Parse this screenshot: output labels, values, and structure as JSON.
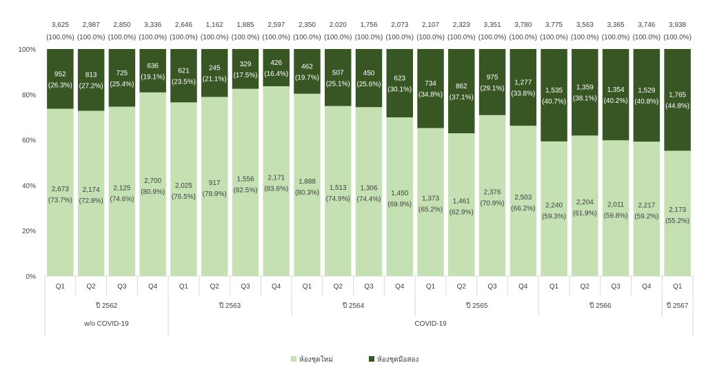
{
  "chart_data": {
    "type": "bar",
    "stacked": true,
    "percent_stacked": true,
    "title": "",
    "ylabel": "",
    "xlabel": "",
    "ylim": [
      0,
      100
    ],
    "y_ticks": [
      "0%",
      "20%",
      "40%",
      "60%",
      "80%",
      "100%"
    ],
    "categories": [
      "Q1",
      "Q2",
      "Q3",
      "Q4",
      "Q1",
      "Q2",
      "Q3",
      "Q4",
      "Q1",
      "Q2",
      "Q3",
      "Q4",
      "Q1",
      "Q2",
      "Q3",
      "Q4",
      "Q1",
      "Q2",
      "Q3",
      "Q4",
      "Q1"
    ],
    "year_groups": [
      {
        "label": "ปี 2562",
        "count": 4
      },
      {
        "label": "ปี 2563",
        "count": 4
      },
      {
        "label": "ปี 2564",
        "count": 4
      },
      {
        "label": "ปี 2565",
        "count": 4
      },
      {
        "label": "ปี 2566",
        "count": 4
      },
      {
        "label": "ปี 2567",
        "count": 1
      }
    ],
    "period_groups": [
      {
        "label": "w/o COVID-19",
        "count": 4
      },
      {
        "label": "COVID-19",
        "count": 17
      }
    ],
    "totals": [
      "3,625",
      "2,987",
      "2,850",
      "3,336",
      "2,646",
      "1,162",
      "1,885",
      "2,597",
      "2,350",
      "2,020",
      "1,756",
      "2,073",
      "2,107",
      "2,323",
      "3,351",
      "3,780",
      "3,775",
      "3,563",
      "3,365",
      "3,746",
      "3,938"
    ],
    "total_pct": "(100.0%)",
    "series": [
      {
        "name": "ห้องชุดใหม่",
        "color": "#c5e0b3",
        "values": [
          "2,673",
          "2,174",
          "2,125",
          "2,700",
          "2,025",
          "917",
          "1,556",
          "2,171",
          "1,888",
          "1,513",
          "1,306",
          "1,450",
          "1,373",
          "1,461",
          "2,376",
          "2,503",
          "2,240",
          "2,204",
          "2,011",
          "2,217",
          "2,173"
        ],
        "pct": [
          73.7,
          72.8,
          74.6,
          80.9,
          76.5,
          78.9,
          82.5,
          83.6,
          80.3,
          74.9,
          74.4,
          69.9,
          65.2,
          62.9,
          70.9,
          66.2,
          59.3,
          61.9,
          59.8,
          59.2,
          55.2
        ]
      },
      {
        "name": "ห้องชุดมือสอง",
        "color": "#375623",
        "values": [
          "952",
          "813",
          "725",
          "636",
          "621",
          "245",
          "329",
          "426",
          "462",
          "507",
          "450",
          "623",
          "734",
          "862",
          "975",
          "1,277",
          "1,535",
          "1,359",
          "1,354",
          "1,529",
          "1,765"
        ],
        "pct": [
          26.3,
          27.2,
          25.4,
          19.1,
          23.5,
          21.1,
          17.5,
          16.4,
          19.7,
          25.1,
          25.6,
          30.1,
          34.8,
          37.1,
          29.1,
          33.8,
          40.7,
          38.1,
          40.2,
          40.8,
          44.8
        ]
      }
    ],
    "legend_position": "bottom",
    "grid": false
  }
}
